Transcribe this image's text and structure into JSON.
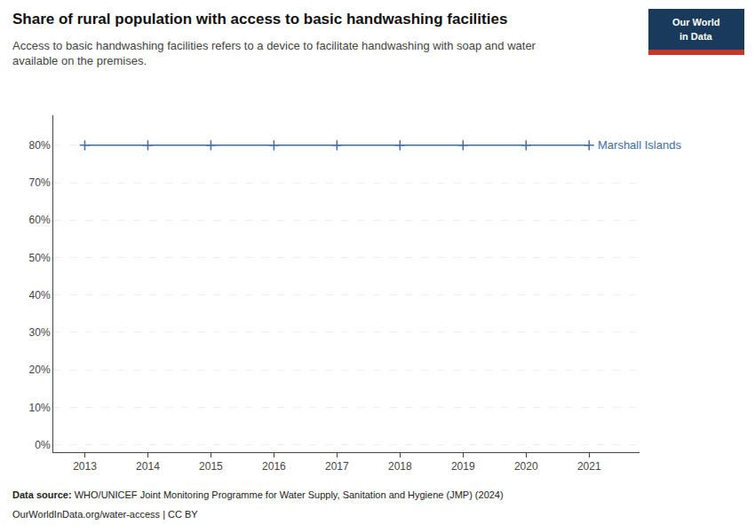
{
  "chart_data": {
    "type": "line",
    "title": "Share of rural population with access to basic handwashing facilities",
    "subtitle": "Access to basic handwashing facilities refers to a device to facilitate handwashing with soap and water\navailable on the premises.",
    "source_label": "Data source:",
    "source": "WHO/UNICEF Joint Monitoring Programme for Water Supply, Sanitation and Hygiene (JMP) (2024)",
    "source_note": "OurWorldInData.org/water-access | CC BY",
    "logo_text": [
      "Our World",
      "in Data"
    ],
    "logo_color": "#1a3a5c",
    "logo_accent_color": "#c0392b",
    "x": [
      2013,
      2014,
      2015,
      2016,
      2017,
      2018,
      2019,
      2020,
      2021
    ],
    "series": [
      {
        "name": "Marshall Islands",
        "color": "#3d6eaa",
        "marker": "plus",
        "values": [
          80.0,
          80.0,
          80.0,
          80.0,
          80.0,
          80.0,
          80.0,
          80.0,
          80.0
        ]
      }
    ],
    "xlim": [
      2012.5,
      2021.8
    ],
    "ylim": [
      -2,
      88
    ],
    "xticks": [
      2013,
      2014,
      2015,
      2016,
      2017,
      2018,
      2019,
      2020,
      2021
    ],
    "yticks": [
      {
        "value": 0,
        "label": "0%"
      },
      {
        "value": 10,
        "label": "10%"
      },
      {
        "value": 20,
        "label": "20%"
      },
      {
        "value": 30,
        "label": "30%"
      },
      {
        "value": 40,
        "label": "40%"
      },
      {
        "value": 50,
        "label": "50%"
      },
      {
        "value": 60,
        "label": "60%"
      },
      {
        "value": 70,
        "label": "70%"
      },
      {
        "value": 80,
        "label": "80%"
      }
    ],
    "grid": "y"
  }
}
